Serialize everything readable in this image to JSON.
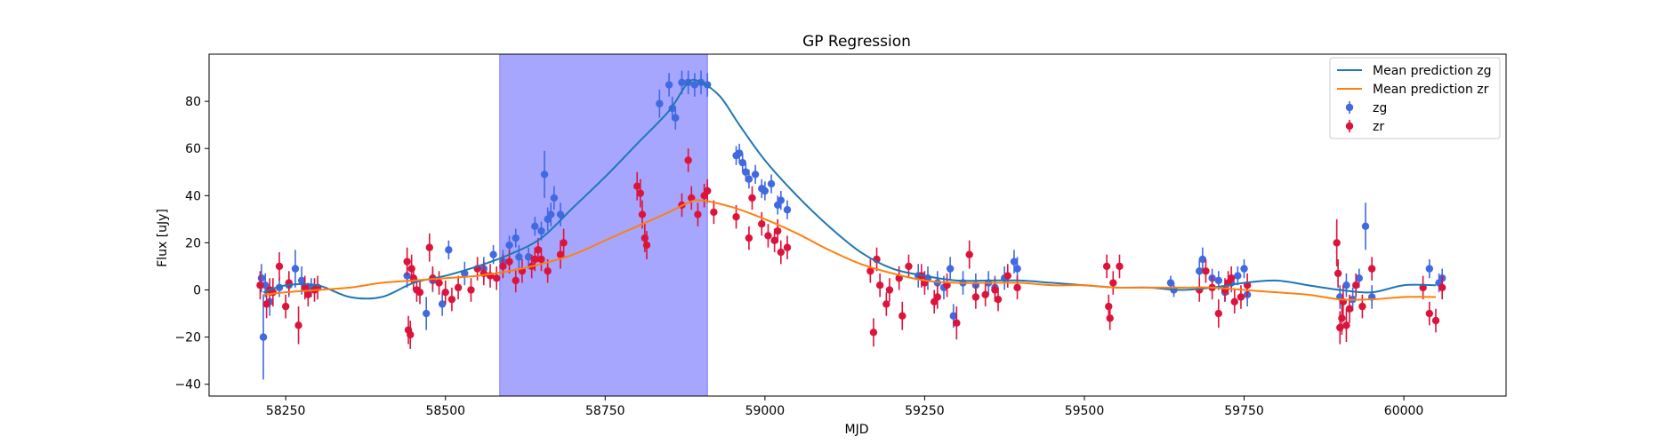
{
  "chart_data": {
    "type": "scatter",
    "title": "GP Regression",
    "xlabel": "MJD",
    "ylabel": "Flux [uJy]",
    "xlim": [
      58130,
      60160
    ],
    "ylim": [
      -45,
      100
    ],
    "xticks": [
      58250,
      58500,
      58750,
      59000,
      59250,
      59500,
      59750,
      60000
    ],
    "yticks": [
      -40,
      -20,
      0,
      20,
      40,
      60,
      80
    ],
    "grid": false,
    "legend_position": "top-right",
    "highlight_span": {
      "x0": 58585,
      "x1": 58910,
      "color": "#a6a6ff"
    },
    "series": [
      {
        "name": "Mean prediction zg",
        "kind": "line",
        "color": "#1f77b4",
        "x": [
          58215,
          58250,
          58300,
          58350,
          58400,
          58450,
          58500,
          58550,
          58600,
          58650,
          58700,
          58750,
          58800,
          58850,
          58880,
          58900,
          58930,
          58960,
          59000,
          59050,
          59100,
          59150,
          59200,
          59250,
          59300,
          59350,
          59400,
          59450,
          59500,
          59550,
          59600,
          59650,
          59700,
          59750,
          59800,
          59850,
          59900,
          59950,
          60000,
          60050
        ],
        "y": [
          -1,
          2,
          2,
          -3,
          -3,
          3,
          6,
          10,
          15,
          22,
          35,
          48,
          62,
          76,
          88,
          88,
          82,
          70,
          55,
          40,
          27,
          16,
          9,
          6,
          4,
          4,
          4,
          3,
          2,
          1,
          1,
          0,
          1,
          3,
          4,
          2,
          0,
          -1,
          2,
          2
        ]
      },
      {
        "name": "Mean prediction zr",
        "kind": "line",
        "color": "#ff7f0e",
        "x": [
          58215,
          58250,
          58300,
          58350,
          58400,
          58450,
          58500,
          58550,
          58600,
          58650,
          58700,
          58750,
          58800,
          58850,
          58880,
          58900,
          58950,
          59000,
          59050,
          59100,
          59150,
          59200,
          59250,
          59300,
          59350,
          59400,
          59450,
          59500,
          59550,
          59600,
          59650,
          59700,
          59750,
          59800,
          59850,
          59900,
          59950,
          60000,
          60050
        ],
        "y": [
          -2,
          -1,
          0,
          1,
          3,
          4,
          5,
          6,
          8,
          11,
          15,
          21,
          27,
          33,
          37,
          38,
          35,
          30,
          24,
          17,
          11,
          7,
          4,
          3,
          3,
          3,
          2,
          2,
          1,
          1,
          1,
          1,
          0,
          -1,
          -2,
          -4,
          -4,
          -3,
          -3
        ]
      },
      {
        "name": "zg",
        "kind": "errorbar",
        "color": "#4169e1",
        "points": [
          [
            58212,
            5,
            6
          ],
          [
            58215,
            -20,
            18
          ],
          [
            58218,
            2,
            5
          ],
          [
            58225,
            -5,
            6
          ],
          [
            58240,
            1,
            4
          ],
          [
            58255,
            2,
            5
          ],
          [
            58265,
            9,
            8
          ],
          [
            58275,
            4,
            6
          ],
          [
            58290,
            1,
            4
          ],
          [
            58440,
            6,
            5
          ],
          [
            58470,
            -10,
            7
          ],
          [
            58480,
            4,
            5
          ],
          [
            58495,
            -6,
            5
          ],
          [
            58505,
            17,
            4
          ],
          [
            58530,
            7,
            5
          ],
          [
            58560,
            9,
            5
          ],
          [
            58575,
            15,
            4
          ],
          [
            58590,
            12,
            5
          ],
          [
            58600,
            19,
            4
          ],
          [
            58610,
            22,
            4
          ],
          [
            58615,
            14,
            5
          ],
          [
            58630,
            14,
            4
          ],
          [
            58640,
            27,
            4
          ],
          [
            58650,
            25,
            4
          ],
          [
            58655,
            49,
            10
          ],
          [
            58660,
            30,
            5
          ],
          [
            58665,
            32,
            5
          ],
          [
            58670,
            39,
            5
          ],
          [
            58680,
            32,
            5
          ],
          [
            58835,
            79,
            6
          ],
          [
            58850,
            87,
            5
          ],
          [
            58855,
            77,
            5
          ],
          [
            58860,
            73,
            5
          ],
          [
            58870,
            88,
            5
          ],
          [
            58880,
            88,
            5
          ],
          [
            58890,
            87,
            5
          ],
          [
            58900,
            88,
            5
          ],
          [
            58910,
            87,
            5
          ],
          [
            58955,
            57,
            4
          ],
          [
            58960,
            58,
            4
          ],
          [
            58965,
            54,
            4
          ],
          [
            58970,
            50,
            4
          ],
          [
            58975,
            47,
            4
          ],
          [
            58985,
            49,
            4
          ],
          [
            58995,
            43,
            4
          ],
          [
            59000,
            42,
            4
          ],
          [
            59010,
            45,
            4
          ],
          [
            59020,
            36,
            4
          ],
          [
            59025,
            38,
            4
          ],
          [
            59035,
            34,
            4
          ],
          [
            59240,
            6,
            5
          ],
          [
            59255,
            5,
            5
          ],
          [
            59270,
            3,
            5
          ],
          [
            59280,
            1,
            5
          ],
          [
            59290,
            9,
            5
          ],
          [
            59295,
            -11,
            5
          ],
          [
            59310,
            3,
            5
          ],
          [
            59330,
            2,
            5
          ],
          [
            59350,
            3,
            5
          ],
          [
            59360,
            1,
            5
          ],
          [
            59375,
            5,
            5
          ],
          [
            59390,
            12,
            5
          ],
          [
            59395,
            9,
            5
          ],
          [
            59635,
            3,
            3
          ],
          [
            59640,
            0,
            3
          ],
          [
            59680,
            8,
            5
          ],
          [
            59685,
            13,
            5
          ],
          [
            59700,
            5,
            4
          ],
          [
            59710,
            4,
            4
          ],
          [
            59720,
            -1,
            4
          ],
          [
            59730,
            3,
            4
          ],
          [
            59740,
            6,
            4
          ],
          [
            59750,
            9,
            4
          ],
          [
            59755,
            -2,
            5
          ],
          [
            59900,
            -3,
            5
          ],
          [
            59910,
            2,
            5
          ],
          [
            59920,
            -4,
            5
          ],
          [
            59930,
            5,
            4
          ],
          [
            59940,
            27,
            10
          ],
          [
            59950,
            -3,
            5
          ],
          [
            60040,
            9,
            4
          ],
          [
            60055,
            3,
            4
          ],
          [
            60060,
            5,
            4
          ]
        ]
      },
      {
        "name": "zr",
        "kind": "errorbar",
        "color": "#dc143c",
        "points": [
          [
            58210,
            2,
            6
          ],
          [
            58220,
            -6,
            6
          ],
          [
            58225,
            0,
            5
          ],
          [
            58230,
            -1,
            6
          ],
          [
            58240,
            10,
            6
          ],
          [
            58250,
            -7,
            5
          ],
          [
            58255,
            3,
            5
          ],
          [
            58270,
            -15,
            8
          ],
          [
            58280,
            1,
            5
          ],
          [
            58285,
            -2,
            5
          ],
          [
            58295,
            0,
            5
          ],
          [
            58300,
            1,
            5
          ],
          [
            58440,
            12,
            6
          ],
          [
            58442,
            -17,
            6
          ],
          [
            58445,
            -19,
            6
          ],
          [
            58447,
            9,
            6
          ],
          [
            58450,
            5,
            5
          ],
          [
            58455,
            0,
            5
          ],
          [
            58460,
            -1,
            5
          ],
          [
            58475,
            18,
            6
          ],
          [
            58480,
            5,
            5
          ],
          [
            58490,
            3,
            5
          ],
          [
            58500,
            -1,
            5
          ],
          [
            58510,
            -4,
            5
          ],
          [
            58520,
            1,
            5
          ],
          [
            58540,
            0,
            5
          ],
          [
            58550,
            9,
            5
          ],
          [
            58560,
            7,
            5
          ],
          [
            58570,
            6,
            5
          ],
          [
            58580,
            5,
            5
          ],
          [
            58590,
            10,
            5
          ],
          [
            58600,
            12,
            5
          ],
          [
            58610,
            4,
            5
          ],
          [
            58620,
            8,
            5
          ],
          [
            58635,
            10,
            5
          ],
          [
            58640,
            13,
            5
          ],
          [
            58645,
            17,
            5
          ],
          [
            58650,
            13,
            5
          ],
          [
            58660,
            8,
            5
          ],
          [
            58680,
            15,
            6
          ],
          [
            58685,
            20,
            6
          ],
          [
            58800,
            44,
            6
          ],
          [
            58805,
            41,
            6
          ],
          [
            58808,
            32,
            6
          ],
          [
            58812,
            22,
            6
          ],
          [
            58815,
            19,
            6
          ],
          [
            58870,
            36,
            5
          ],
          [
            58880,
            55,
            5
          ],
          [
            58885,
            39,
            5
          ],
          [
            58895,
            32,
            5
          ],
          [
            58905,
            40,
            5
          ],
          [
            58910,
            42,
            5
          ],
          [
            58920,
            33,
            5
          ],
          [
            58955,
            31,
            5
          ],
          [
            58975,
            22,
            5
          ],
          [
            58980,
            39,
            5
          ],
          [
            58995,
            28,
            5
          ],
          [
            59005,
            23,
            5
          ],
          [
            59015,
            21,
            5
          ],
          [
            59020,
            25,
            5
          ],
          [
            59025,
            16,
            5
          ],
          [
            59035,
            18,
            5
          ],
          [
            59165,
            8,
            5
          ],
          [
            59170,
            -18,
            6
          ],
          [
            59175,
            13,
            5
          ],
          [
            59180,
            2,
            5
          ],
          [
            59190,
            -6,
            5
          ],
          [
            59195,
            0,
            5
          ],
          [
            59210,
            5,
            5
          ],
          [
            59215,
            -11,
            6
          ],
          [
            59225,
            10,
            5
          ],
          [
            59245,
            6,
            5
          ],
          [
            59250,
            3,
            5
          ],
          [
            59265,
            -5,
            5
          ],
          [
            59270,
            -3,
            5
          ],
          [
            59285,
            2,
            5
          ],
          [
            59300,
            -14,
            7
          ],
          [
            59320,
            15,
            6
          ],
          [
            59330,
            -3,
            5
          ],
          [
            59345,
            -2,
            5
          ],
          [
            59360,
            0,
            5
          ],
          [
            59365,
            -4,
            5
          ],
          [
            59380,
            6,
            5
          ],
          [
            59395,
            1,
            5
          ],
          [
            59535,
            10,
            5
          ],
          [
            59538,
            -7,
            5
          ],
          [
            59540,
            -12,
            5
          ],
          [
            59545,
            3,
            5
          ],
          [
            59555,
            10,
            5
          ],
          [
            59680,
            0,
            5
          ],
          [
            59690,
            8,
            5
          ],
          [
            59700,
            1,
            5
          ],
          [
            59710,
            -10,
            6
          ],
          [
            59720,
            0,
            5
          ],
          [
            59725,
            3,
            5
          ],
          [
            59730,
            5,
            5
          ],
          [
            59735,
            -5,
            5
          ],
          [
            59745,
            -3,
            5
          ],
          [
            59755,
            2,
            5
          ],
          [
            59895,
            20,
            10
          ],
          [
            59897,
            7,
            6
          ],
          [
            59900,
            -16,
            7
          ],
          [
            59903,
            -12,
            7
          ],
          [
            59905,
            -5,
            7
          ],
          [
            59910,
            -15,
            7
          ],
          [
            59915,
            -8,
            6
          ],
          [
            59925,
            2,
            5
          ],
          [
            59935,
            -7,
            5
          ],
          [
            59950,
            9,
            5
          ],
          [
            60030,
            1,
            5
          ],
          [
            60040,
            -10,
            5
          ],
          [
            60050,
            -13,
            5
          ],
          [
            60060,
            1,
            5
          ]
        ]
      }
    ]
  }
}
